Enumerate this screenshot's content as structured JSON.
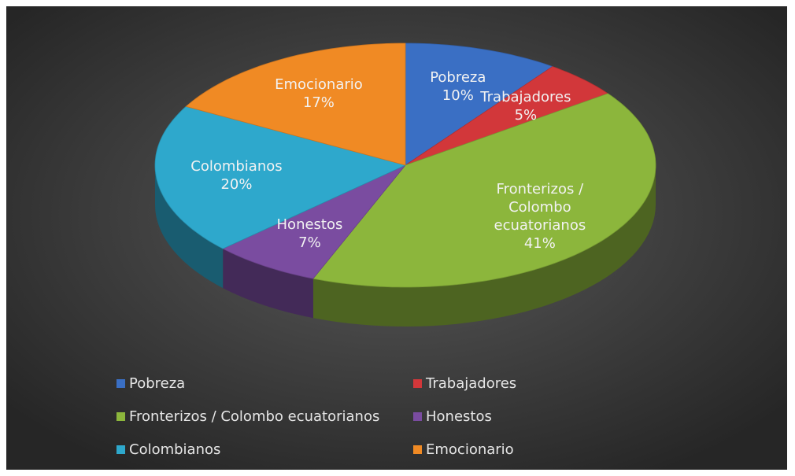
{
  "chart_data": {
    "type": "pie",
    "categories": [
      "Pobreza",
      "Trabajadores",
      "Fronterizos / Colombo ecuatorianos",
      "Honestos",
      "Colombianos",
      "Emocionario"
    ],
    "values": [
      10,
      5,
      41,
      7,
      20,
      17
    ],
    "value_labels": [
      "10%",
      "5%",
      "41%",
      "7%",
      "20%",
      "17%"
    ],
    "colors": [
      "#3a6fc4",
      "#d2373a",
      "#8cb63c",
      "#7a4ca0",
      "#2ea8cc",
      "#f08a24"
    ],
    "legend": "bottom"
  }
}
